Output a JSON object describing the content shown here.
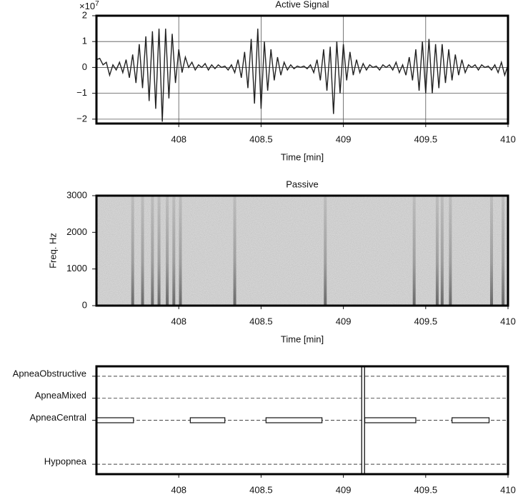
{
  "chart_data": [
    {
      "type": "line",
      "title": "Active Signal",
      "xlabel": "Time [min]",
      "y_multiplier": "×10",
      "y_multiplier_exponent": "7",
      "xlim": [
        407.5,
        410
      ],
      "xticks": [
        408,
        408.5,
        409,
        409.5,
        410
      ],
      "ylim": [
        -2.17,
        2
      ],
      "yticks": [
        2,
        1,
        0,
        {
          "value": -1,
          "label": "−1"
        },
        {
          "value": -2,
          "label": "−2"
        }
      ],
      "grid": true,
      "color": "#222222",
      "x": [
        407.5,
        407.52,
        407.54,
        407.56,
        407.58,
        407.6,
        407.62,
        407.64,
        407.66,
        407.68,
        407.7,
        407.72,
        407.74,
        407.76,
        407.78,
        407.8,
        407.82,
        407.84,
        407.86,
        407.88,
        407.9,
        407.92,
        407.94,
        407.96,
        407.98,
        408,
        408.02,
        408.04,
        408.06,
        408.08,
        408.1,
        408.12,
        408.14,
        408.16,
        408.18,
        408.2,
        408.22,
        408.24,
        408.26,
        408.28,
        408.3,
        408.32,
        408.34,
        408.36,
        408.38,
        408.4,
        408.42,
        408.44,
        408.46,
        408.48,
        408.5,
        408.52,
        408.54,
        408.56,
        408.58,
        408.6,
        408.62,
        408.64,
        408.66,
        408.68,
        408.7,
        408.72,
        408.74,
        408.76,
        408.78,
        408.8,
        408.82,
        408.84,
        408.86,
        408.88,
        408.9,
        408.92,
        408.94,
        408.96,
        408.98,
        409,
        409.02,
        409.04,
        409.06,
        409.08,
        409.1,
        409.12,
        409.14,
        409.16,
        409.18,
        409.2,
        409.22,
        409.24,
        409.26,
        409.28,
        409.3,
        409.32,
        409.34,
        409.36,
        409.38,
        409.4,
        409.42,
        409.44,
        409.46,
        409.48,
        409.5,
        409.52,
        409.54,
        409.56,
        409.58,
        409.6,
        409.62,
        409.64,
        409.66,
        409.68,
        409.7,
        409.72,
        409.74,
        409.76,
        409.78,
        409.8,
        409.82,
        409.84,
        409.86,
        409.88,
        409.9,
        409.92,
        409.94,
        409.96,
        409.98,
        410
      ],
      "values": [
        0.3,
        0.35,
        0.1,
        0.2,
        -0.3,
        0.1,
        -0.1,
        0.2,
        -0.2,
        0.3,
        -0.4,
        0.5,
        -0.6,
        0.9,
        -0.8,
        1.2,
        -1.3,
        1.4,
        -1.6,
        1.5,
        -2.1,
        1.5,
        -1.2,
        1.3,
        -0.6,
        0.7,
        -0.2,
        0.4,
        0,
        0.2,
        -0.1,
        0.1,
        0,
        0.15,
        -0.1,
        0.1,
        -0.05,
        0.1,
        0,
        0.05,
        -0.1,
        0.1,
        -0.2,
        0.3,
        -0.4,
        0.6,
        -0.8,
        1.1,
        -1.4,
        1.5,
        -1.6,
        1,
        -0.9,
        0.7,
        -0.5,
        0.4,
        -0.3,
        0.2,
        -0.1,
        0.1,
        -0.05,
        0.05,
        0,
        0.05,
        -0.05,
        0.1,
        -0.2,
        0.3,
        -0.5,
        0.7,
        -0.9,
        0.8,
        -1.8,
        1,
        -1,
        0.9,
        -0.5,
        0.6,
        -0.3,
        0.3,
        -0.2,
        0.15,
        -0.1,
        0.1,
        0,
        0.05,
        -0.1,
        0.1,
        0,
        0.1,
        -0.1,
        0.2,
        -0.2,
        0.1,
        -0.3,
        0.4,
        -0.5,
        0.7,
        -0.9,
        1,
        -1,
        1.1,
        -1,
        0.9,
        -0.8,
        0.9,
        -0.6,
        0.7,
        -0.5,
        0.5,
        -0.3,
        0.3,
        -0.2,
        0.1,
        0,
        0.1,
        -0.1,
        0.1,
        0,
        0.05,
        -0.1,
        0.1,
        -0.2,
        0.2,
        -0.3,
        0.1
      ]
    },
    {
      "type": "spectrogram",
      "title": "Passive",
      "xlabel": "Time [min]",
      "ylabel": "Freq. Hz",
      "xlim": [
        407.5,
        410
      ],
      "xticks": [
        408,
        408.5,
        409,
        409.5,
        410
      ],
      "ylim": [
        0,
        3000
      ],
      "yticks": [
        0,
        1000,
        2000,
        3000
      ],
      "streaks_x": [
        407.72,
        407.78,
        407.84,
        407.88,
        407.93,
        407.97,
        408.01,
        408.34,
        408.89,
        409.43,
        409.57,
        409.6,
        409.65,
        409.9,
        409.97
      ]
    },
    {
      "type": "events",
      "xlim": [
        407.5,
        410
      ],
      "xticks": [
        408,
        408.5,
        409,
        409.5,
        410
      ],
      "ylim": [
        -0.45,
        4.45
      ],
      "categories": [
        "ApneaObstructive",
        "ApneaMixed",
        "ApneaCentral",
        "Hypopnea"
      ],
      "yvalues": [
        4,
        3,
        2,
        0
      ],
      "event_starts": [
        [],
        [],
        [
          407.5,
          408.07,
          408.53,
          409.13,
          409.66
        ],
        []
      ],
      "event_ends": [
        [],
        [],
        [
          407.725,
          408.28,
          408.87,
          409.44,
          409.885
        ],
        []
      ],
      "marker_x": 409.12
    }
  ]
}
